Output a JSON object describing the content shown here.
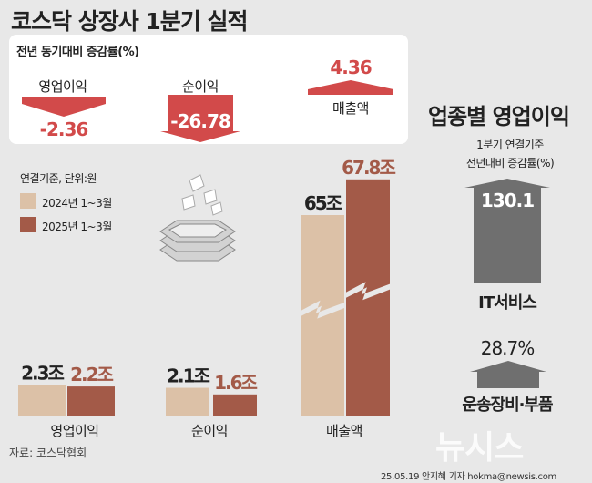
{
  "title": "코스닥 상장사 1분기 실적",
  "yoy": {
    "title": "전년 동기대비 증감률(%)",
    "items": [
      {
        "label": "영업이익",
        "value": "-2.36"
      },
      {
        "label": "순이익",
        "value": "-26.78"
      },
      {
        "label": "매출액",
        "value": "4.36"
      }
    ]
  },
  "legend": {
    "note": "연결기준, 단위:원",
    "items": [
      {
        "label": "2024년 1~3월",
        "color": "#dcc1a7"
      },
      {
        "label": "2025년 1~3월",
        "color": "#a35a48"
      }
    ]
  },
  "chart_data": {
    "type": "bar",
    "categories": [
      "영업이익",
      "순이익",
      "매출액"
    ],
    "series": [
      {
        "name": "2024년 1~3월",
        "values": [
          2.3,
          2.1,
          65
        ],
        "labels": [
          "2.3조",
          "2.1조",
          "65조"
        ]
      },
      {
        "name": "2025년 1~3월",
        "values": [
          2.2,
          1.6,
          67.8
        ],
        "labels": [
          "2.2조",
          "1.6조",
          "67.8조"
        ]
      }
    ],
    "axis_break": "매출액"
  },
  "sector": {
    "title": "업종별 영업이익",
    "sub1": "1분기 연결기준",
    "sub2": "전년대비 증감률(%)",
    "items": [
      {
        "name": "IT서비스",
        "value": "130.1"
      },
      {
        "name": "운송장비·부품",
        "value": "28.7%"
      }
    ]
  },
  "source": "자료: 코스닥협회",
  "credit": "25.05.19 안지혜 기자  hokma@newsis.com",
  "watermark": "뉴시스",
  "colors": {
    "accent_red": "#d24a4a",
    "bar_prev": "#dcc1a7",
    "bar_curr": "#a35a48",
    "sector_arrow": "#6f6f6f"
  }
}
